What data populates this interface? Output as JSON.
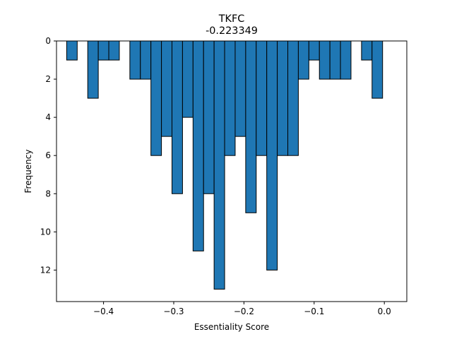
{
  "chart_data": {
    "type": "bar",
    "title": "TKFC",
    "subtitle": "-0.223349",
    "xlabel": "Essentiality Score",
    "ylabel": "Frequency",
    "xlim": [
      -0.467,
      0.032
    ],
    "ylim": [
      13.65,
      0
    ],
    "y_inverted": true,
    "grid": false,
    "bin_width": 0.015,
    "x_ticks": [
      -0.4,
      -0.3,
      -0.2,
      -0.1,
      0.0
    ],
    "x_tick_labels": [
      "−0.4",
      "−0.3",
      "−0.2",
      "−0.1",
      "0.0"
    ],
    "y_ticks": [
      0,
      2,
      4,
      6,
      8,
      10,
      12
    ],
    "y_tick_labels": [
      "0",
      "2",
      "4",
      "6",
      "8",
      "10",
      "12"
    ],
    "bins": [
      {
        "x": -0.4525,
        "value": 1
      },
      {
        "x": -0.4225,
        "value": 3
      },
      {
        "x": -0.4075,
        "value": 1
      },
      {
        "x": -0.3925,
        "value": 1
      },
      {
        "x": -0.3625,
        "value": 2
      },
      {
        "x": -0.3475,
        "value": 2
      },
      {
        "x": -0.3325,
        "value": 6
      },
      {
        "x": -0.3175,
        "value": 5
      },
      {
        "x": -0.3025,
        "value": 8
      },
      {
        "x": -0.2875,
        "value": 4
      },
      {
        "x": -0.2725,
        "value": 11
      },
      {
        "x": -0.2575,
        "value": 8
      },
      {
        "x": -0.2425,
        "value": 13
      },
      {
        "x": -0.2275,
        "value": 6
      },
      {
        "x": -0.2125,
        "value": 5
      },
      {
        "x": -0.1975,
        "value": 9
      },
      {
        "x": -0.1825,
        "value": 6
      },
      {
        "x": -0.1675,
        "value": 12
      },
      {
        "x": -0.1525,
        "value": 6
      },
      {
        "x": -0.1375,
        "value": 6
      },
      {
        "x": -0.1225,
        "value": 2
      },
      {
        "x": -0.1075,
        "value": 1
      },
      {
        "x": -0.0925,
        "value": 2
      },
      {
        "x": -0.0775,
        "value": 2
      },
      {
        "x": -0.0625,
        "value": 2
      },
      {
        "x": -0.0325,
        "value": 1
      },
      {
        "x": -0.0175,
        "value": 3
      }
    ]
  }
}
